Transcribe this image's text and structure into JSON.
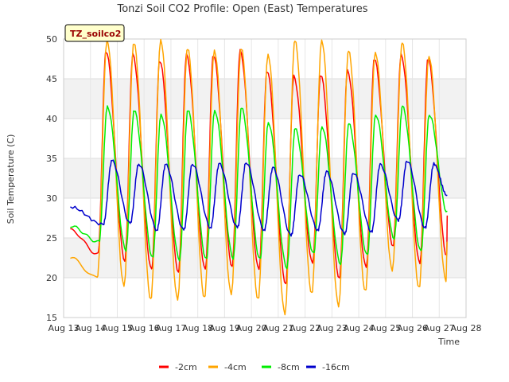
{
  "chart_data": {
    "type": "line",
    "title": "Tonzi Soil CO2 Profile: Open (East) Temperatures",
    "xlabel": "Time",
    "ylabel": "Soil Temperature (C)",
    "badge": "TZ_soilco2",
    "ylim": [
      15,
      50
    ],
    "xlim": [
      13,
      28
    ],
    "yticks": [
      15,
      20,
      25,
      30,
      35,
      40,
      45,
      50
    ],
    "xticks": [
      {
        "v": 13,
        "label": "Aug 13"
      },
      {
        "v": 14,
        "label": "Aug 14"
      },
      {
        "v": 15,
        "label": "Aug 15"
      },
      {
        "v": 16,
        "label": "Aug 16"
      },
      {
        "v": 17,
        "label": "Aug 17"
      },
      {
        "v": 18,
        "label": "Aug 18"
      },
      {
        "v": 19,
        "label": "Aug 19"
      },
      {
        "v": 20,
        "label": "Aug 20"
      },
      {
        "v": 21,
        "label": "Aug 21"
      },
      {
        "v": 22,
        "label": "Aug 22"
      },
      {
        "v": 23,
        "label": "Aug 23"
      },
      {
        "v": 24,
        "label": "Aug 24"
      },
      {
        "v": 25,
        "label": "Aug 25"
      },
      {
        "v": 26,
        "label": "Aug 26"
      },
      {
        "v": 27,
        "label": "Aug 27"
      },
      {
        "v": 28,
        "label": "Aug 28"
      }
    ],
    "grid": true,
    "legend": "bottom-center",
    "x_start": 13.25,
    "x_end": 27.3,
    "series": [
      {
        "name": "-2cm",
        "color": "#ff0000",
        "min_time": 0.28,
        "max_time": 0.58,
        "mins": [
          23.0,
          22.2,
          21.0,
          20.8,
          21.0,
          21.5,
          21.0,
          19.3,
          21.8,
          20.0,
          21.3,
          24.0,
          21.8,
          22.8
        ],
        "maxs": [
          48.5,
          48.0,
          47.3,
          48.0,
          48.0,
          48.5,
          46.0,
          45.3,
          45.5,
          46.0,
          47.5,
          48.0,
          47.5,
          48.3
        ],
        "start": 26.0,
        "end": 28.0
      },
      {
        "name": "-4cm",
        "color": "#ffa500",
        "min_time": 0.25,
        "max_time": 0.62,
        "mins": [
          20.0,
          19.0,
          17.3,
          17.3,
          17.5,
          18.0,
          17.3,
          15.5,
          18.0,
          16.5,
          18.3,
          21.0,
          18.7,
          19.7
        ],
        "maxs": [
          49.8,
          49.5,
          49.8,
          48.8,
          48.5,
          48.8,
          48.0,
          49.8,
          49.8,
          48.5,
          48.3,
          49.5,
          47.8,
          48.8
        ],
        "start": 22.5,
        "end": 24.5
      },
      {
        "name": "-8cm",
        "color": "#00ee00",
        "min_time": 0.32,
        "max_time": 0.63,
        "mins": [
          24.5,
          23.5,
          22.5,
          22.3,
          22.3,
          22.5,
          22.3,
          21.3,
          23.0,
          21.8,
          22.8,
          25.0,
          23.3,
          24.0
        ],
        "maxs": [
          41.5,
          41.0,
          40.5,
          41.0,
          41.0,
          41.3,
          39.5,
          38.7,
          39.0,
          39.3,
          40.5,
          41.5,
          40.5,
          41.5
        ],
        "start": 26.5,
        "end": 28.2
      },
      {
        "name": "-16cm",
        "color": "#0000cc",
        "min_time": 0.48,
        "max_time": 0.8,
        "mins": [
          26.7,
          26.8,
          26.0,
          26.0,
          26.3,
          26.3,
          26.0,
          25.3,
          26.0,
          25.5,
          25.8,
          27.2,
          26.3,
          26.8
        ],
        "maxs": [
          34.7,
          34.3,
          34.2,
          34.3,
          34.3,
          34.5,
          33.8,
          33.0,
          33.3,
          33.2,
          34.2,
          34.7,
          34.3,
          34.7
        ],
        "start": 28.9,
        "end": 30.3
      }
    ]
  }
}
